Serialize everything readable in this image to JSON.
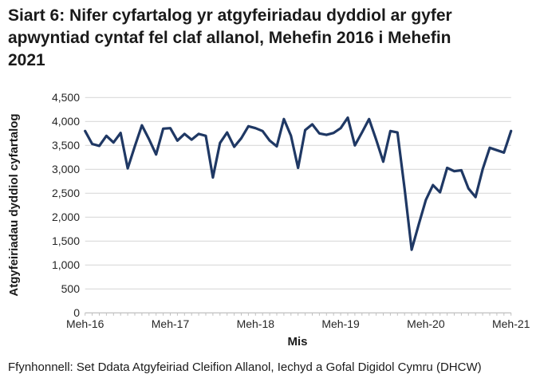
{
  "header": {
    "title": "Siart 6: Nifer cyfartalog yr atgyfeiriadau dyddiol ar gyfer apwyntiad cyntaf fel claf allanol, Mehefin 2016 i Mehefin 2021",
    "title_lines": [
      "Siart 6: Nifer cyfartalog yr atgyfeiriadau dyddiol ar gyfer",
      "apwyntiad cyntaf fel claf allanol, Mehefin 2016 i Mehefin",
      "2021"
    ]
  },
  "chart": {
    "y_axis": {
      "title": "Atgyfeiriadau dyddiol cyfartalog",
      "min": 0,
      "max": 4500,
      "step": 500,
      "tick_labels": [
        "0",
        "500",
        "1,000",
        "1,500",
        "2,000",
        "2,500",
        "3,000",
        "3,500",
        "4,000",
        "4,500"
      ]
    },
    "x_axis": {
      "title": "Mis",
      "tick_labels": [
        "Meh-16",
        "Meh-17",
        "Meh-18",
        "Meh-19",
        "Meh-20",
        "Meh-21"
      ]
    },
    "colors": {
      "line": "#1F3864",
      "gridline": "#D9D9D9",
      "axis": "#BFBFBF"
    }
  },
  "chart_data": {
    "type": "line",
    "title": "Siart 6: Nifer cyfartalog yr atgyfeiriadau dyddiol ar gyfer apwyntiad cyntaf fel claf allanol, Mehefin 2016 i Mehefin 2021",
    "xlabel": "Mis",
    "ylabel": "Atgyfeiriadau dyddiol cyfartalog",
    "ylim": [
      0,
      4500
    ],
    "grid": "horizontal",
    "legend": "none",
    "x_tick_labels": [
      "Meh-16",
      "Meh-17",
      "Meh-18",
      "Meh-19",
      "Meh-20",
      "Meh-21"
    ],
    "x_monthly": [
      "2016-06",
      "2016-07",
      "2016-08",
      "2016-09",
      "2016-10",
      "2016-11",
      "2016-12",
      "2017-01",
      "2017-02",
      "2017-03",
      "2017-04",
      "2017-05",
      "2017-06",
      "2017-07",
      "2017-08",
      "2017-09",
      "2017-10",
      "2017-11",
      "2017-12",
      "2018-01",
      "2018-02",
      "2018-03",
      "2018-04",
      "2018-05",
      "2018-06",
      "2018-07",
      "2018-08",
      "2018-09",
      "2018-10",
      "2018-11",
      "2018-12",
      "2019-01",
      "2019-02",
      "2019-03",
      "2019-04",
      "2019-05",
      "2019-06",
      "2019-07",
      "2019-08",
      "2019-09",
      "2019-10",
      "2019-11",
      "2019-12",
      "2020-01",
      "2020-02",
      "2020-03",
      "2020-04",
      "2020-05",
      "2020-06",
      "2020-07",
      "2020-08",
      "2020-09",
      "2020-10",
      "2020-11",
      "2020-12",
      "2021-01",
      "2021-02",
      "2021-03",
      "2021-04",
      "2021-05",
      "2021-06"
    ],
    "values": [
      3800,
      3530,
      3490,
      3700,
      3560,
      3760,
      3020,
      3480,
      3920,
      3630,
      3310,
      3850,
      3860,
      3600,
      3740,
      3620,
      3740,
      3700,
      2830,
      3550,
      3770,
      3470,
      3650,
      3900,
      3860,
      3800,
      3600,
      3480,
      4050,
      3700,
      3030,
      3820,
      3940,
      3750,
      3720,
      3760,
      3860,
      4080,
      3500,
      3770,
      4050,
      3620,
      3160,
      3800,
      3770,
      2600,
      1320,
      1850,
      2360,
      2670,
      2520,
      3030,
      2960,
      2980,
      2600,
      2420,
      3000,
      3450,
      3400,
      3350,
      3800
    ],
    "line_color": "#1F3864"
  },
  "footer": {
    "source": "Ffynhonnell: Set Ddata Atgyfeiriad Cleifion Allanol, Iechyd a Gofal Digidol Cymru (DHCW)"
  }
}
